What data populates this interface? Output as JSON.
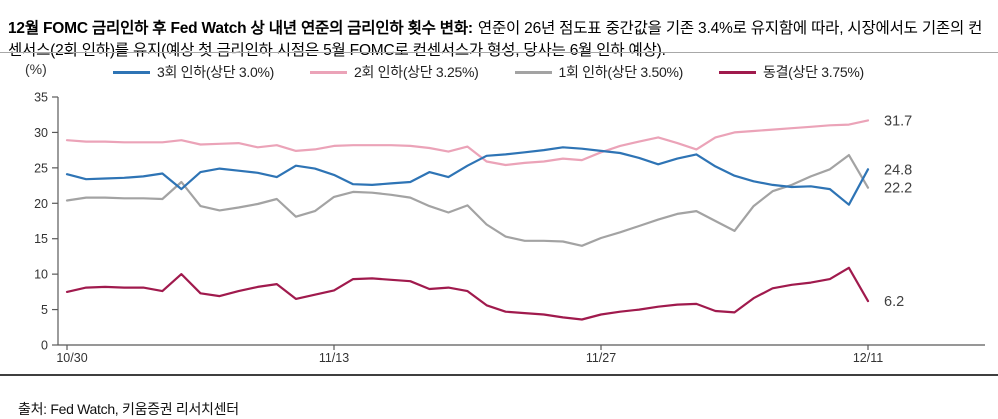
{
  "title": {
    "bold": "12월 FOMC 금리인하 후 Fed Watch 상 내년 연준의 금리인하 횟수 변화:",
    "rest": "연준이 26년 점도표 중간값을 기존 3.4%로 유지함에 따라, 시장에서도 기존의 컨센서스(2회 인하)를 유지(예상 첫 금리인하 시점은 5월 FOMC로 컨센서스가 형성, 당사는 6월 인하 예상)."
  },
  "y_axis_unit": "(%)",
  "source": "출처: Fed Watch, 키움증권 리서치센터",
  "colors": {
    "axis": "#595959",
    "tick_text": "#333333",
    "end_label_text": "#404040"
  },
  "chart_data": {
    "type": "line",
    "title": "",
    "xlabel": "",
    "ylabel": "(%)",
    "ylim": [
      0,
      35
    ],
    "y_ticks": [
      0,
      5,
      10,
      15,
      20,
      25,
      30,
      35
    ],
    "x_tick_labels": [
      "10/30",
      "11/13",
      "11/27",
      "12/11"
    ],
    "x_tick_indices": [
      0,
      14,
      28,
      42
    ],
    "n_points": 43,
    "grid": false,
    "legend_position": "top",
    "draw_order": [
      2,
      1,
      3,
      0
    ],
    "series": [
      {
        "name": "3회 인하(상단 3.0%)",
        "color": "#2E74B5",
        "end_label": "24.8",
        "values": [
          24.1,
          23.4,
          23.5,
          23.6,
          23.8,
          24.2,
          22.0,
          24.4,
          24.9,
          24.6,
          24.3,
          23.7,
          25.3,
          24.9,
          24.0,
          22.7,
          22.6,
          22.8,
          23.0,
          24.4,
          23.7,
          25.3,
          26.7,
          26.9,
          27.2,
          27.5,
          27.9,
          27.7,
          27.4,
          27.1,
          26.4,
          25.5,
          26.3,
          26.9,
          25.2,
          23.9,
          23.1,
          22.6,
          22.3,
          22.4,
          22.0,
          19.8,
          24.8
        ]
      },
      {
        "name": "2회 인하(상단 3.25%)",
        "color": "#EBA3B8",
        "end_label": "31.7",
        "values": [
          28.9,
          28.7,
          28.7,
          28.6,
          28.6,
          28.6,
          28.9,
          28.3,
          28.4,
          28.5,
          27.9,
          28.2,
          27.4,
          27.6,
          28.1,
          28.2,
          28.2,
          28.2,
          28.1,
          27.8,
          27.3,
          28.0,
          25.9,
          25.4,
          25.7,
          25.9,
          26.3,
          26.1,
          27.2,
          28.1,
          28.7,
          29.3,
          28.5,
          27.6,
          29.3,
          30.0,
          30.2,
          30.4,
          30.6,
          30.8,
          31.0,
          31.1,
          31.7
        ]
      },
      {
        "name": "1회 인하(상단 3.50%)",
        "color": "#A3A3A3",
        "end_label": "22.2",
        "values": [
          20.4,
          20.8,
          20.8,
          20.7,
          20.7,
          20.6,
          23.0,
          19.6,
          19.0,
          19.4,
          19.9,
          20.6,
          18.1,
          18.9,
          20.9,
          21.6,
          21.5,
          21.2,
          20.8,
          19.6,
          18.7,
          19.7,
          17.0,
          15.3,
          14.7,
          14.7,
          14.6,
          14.0,
          15.1,
          15.9,
          16.8,
          17.7,
          18.5,
          18.9,
          17.5,
          16.1,
          19.6,
          21.7,
          22.6,
          23.8,
          24.8,
          26.8,
          22.2
        ]
      },
      {
        "name": "동결(상단 3.75%)",
        "color": "#A01A4D",
        "end_label": "6.2",
        "values": [
          7.5,
          8.1,
          8.2,
          8.1,
          8.1,
          7.6,
          10.0,
          7.3,
          6.9,
          7.6,
          8.2,
          8.6,
          6.5,
          7.1,
          7.7,
          9.3,
          9.4,
          9.2,
          9.0,
          7.9,
          8.1,
          7.6,
          5.6,
          4.7,
          4.5,
          4.3,
          3.9,
          3.6,
          4.3,
          4.7,
          5.0,
          5.4,
          5.7,
          5.8,
          4.8,
          4.6,
          6.6,
          8.0,
          8.5,
          8.8,
          9.3,
          10.9,
          6.2
        ]
      }
    ]
  }
}
